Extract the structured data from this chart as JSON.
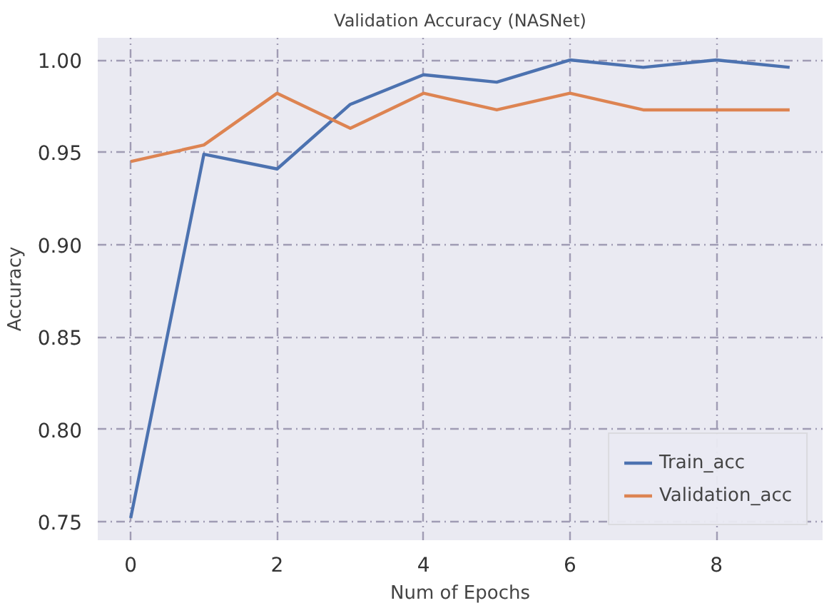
{
  "chart_data": {
    "type": "line",
    "title": "Validation Accuracy (NASNet)",
    "xlabel": "Num of Epochs",
    "ylabel": "Accuracy",
    "x": [
      0,
      1,
      2,
      3,
      4,
      5,
      6,
      7,
      8,
      9
    ],
    "series": [
      {
        "name": "Train_acc",
        "color": "#4c72b0",
        "values": [
          0.752,
          0.949,
          0.941,
          0.976,
          0.992,
          0.988,
          1.0,
          0.996,
          1.0,
          0.996
        ]
      },
      {
        "name": "Validation_acc",
        "color": "#dd8452",
        "values": [
          0.945,
          0.954,
          0.982,
          0.963,
          0.982,
          0.973,
          0.982,
          0.973,
          0.973,
          0.973
        ]
      }
    ],
    "xlim": [
      -0.45,
      9.45
    ],
    "ylim": [
      0.74,
      1.012
    ],
    "xticks": [
      0,
      2,
      4,
      6,
      8
    ],
    "yticks": [
      {
        "value": 0.75,
        "label": "0.75"
      },
      {
        "value": 0.8,
        "label": "0.80"
      },
      {
        "value": 0.85,
        "label": "0.85"
      },
      {
        "value": 0.9,
        "label": "0.90"
      },
      {
        "value": 0.95,
        "label": "0.95"
      },
      {
        "value": 1.0,
        "label": "1.00"
      }
    ],
    "grid": true,
    "legend": "bottom right",
    "marker": "none",
    "line_style": "solid"
  }
}
